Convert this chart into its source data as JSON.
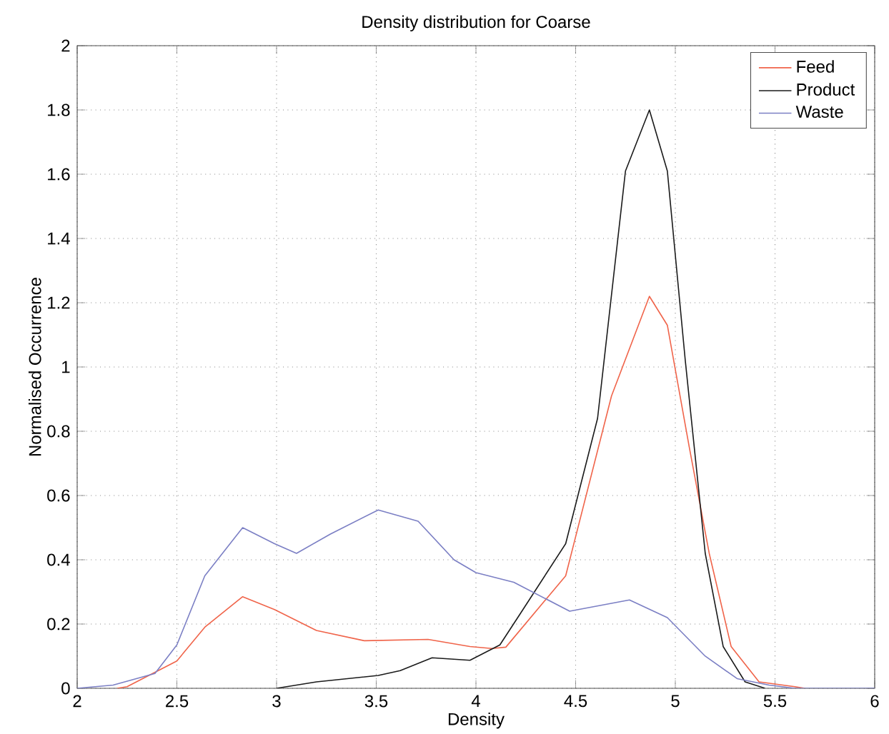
{
  "chart_data": {
    "type": "line",
    "title": "Density distribution for Coarse",
    "xlabel": "Density",
    "ylabel": "Normalised Occurrence",
    "xlim": [
      2,
      6
    ],
    "xticks": [
      2,
      2.5,
      3,
      3.5,
      4,
      4.5,
      5,
      5.5,
      6
    ],
    "ylim": [
      0,
      2
    ],
    "yticks": [
      0,
      0.2,
      0.4,
      0.6,
      0.8,
      1,
      1.2,
      1.4,
      1.6,
      1.8,
      2
    ],
    "grid": true,
    "legend": "top right",
    "marker": "none",
    "line_style": "solid",
    "series": [
      {
        "name": "Feed",
        "color": "#f0644a",
        "x": [
          2.2,
          2.25,
          2.5,
          2.64,
          2.83,
          2.99,
          3.2,
          3.44,
          3.76,
          3.97,
          4.08,
          4.15,
          4.45,
          4.68,
          4.87,
          4.96,
          5.07,
          5.17,
          5.28,
          5.42,
          5.6,
          5.65
        ],
        "values": [
          0,
          0.005,
          0.085,
          0.19,
          0.285,
          0.245,
          0.18,
          0.148,
          0.152,
          0.13,
          0.124,
          0.128,
          0.35,
          0.91,
          1.22,
          1.13,
          0.75,
          0.42,
          0.13,
          0.02,
          0.005,
          0
        ]
      },
      {
        "name": "Product",
        "color": "#1a1a1a",
        "x": [
          3.0,
          3.2,
          3.51,
          3.62,
          3.78,
          3.97,
          4.12,
          4.22,
          4.45,
          4.61,
          4.75,
          4.87,
          4.96,
          5.05,
          5.15,
          5.24,
          5.35,
          5.45
        ],
        "values": [
          0,
          0.02,
          0.04,
          0.055,
          0.095,
          0.087,
          0.135,
          0.23,
          0.45,
          0.84,
          1.61,
          1.8,
          1.61,
          1.02,
          0.42,
          0.13,
          0.02,
          0
        ]
      },
      {
        "name": "Waste",
        "color": "#7b7fc4",
        "x": [
          2.0,
          2.18,
          2.39,
          2.5,
          2.64,
          2.83,
          2.99,
          3.1,
          3.27,
          3.51,
          3.71,
          3.89,
          4.0,
          4.19,
          4.47,
          4.77,
          4.96,
          5.15,
          5.31,
          5.47,
          5.6,
          6.0
        ],
        "values": [
          0,
          0.01,
          0.046,
          0.135,
          0.35,
          0.5,
          0.45,
          0.42,
          0.48,
          0.555,
          0.52,
          0.4,
          0.36,
          0.33,
          0.24,
          0.275,
          0.22,
          0.1,
          0.03,
          0.01,
          0,
          0
        ]
      }
    ]
  }
}
